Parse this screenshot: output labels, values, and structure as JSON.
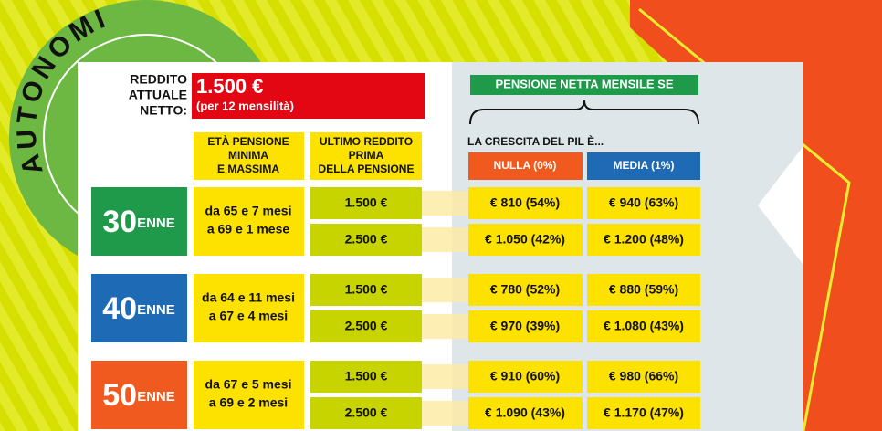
{
  "title": "AUTONOMI",
  "income": {
    "label": [
      "REDDITO",
      "ATTUALE",
      "NETTO:"
    ],
    "amount": "1.500 €",
    "note": "(per 12 mensilità)"
  },
  "columns": {
    "age_range": [
      "ETÀ PENSIONE",
      "MINIMA",
      "E MASSIMA"
    ],
    "last_income": [
      "ULTIMO REDDITO",
      "PRIMA",
      "DELLA PENSIONE"
    ],
    "pension": "PENSIONE NETTA MENSILE SE",
    "gdp": "LA CRESCITA DEL PIL È...",
    "zero": "NULLA (0%)",
    "medium": "MEDIA (1%)"
  },
  "groups": [
    {
      "age": "30",
      "suffix": "ENNE",
      "range": [
        "da 65 e 7 mesi",
        "a 69 e 1 mese"
      ],
      "rows": [
        [
          "1.500 €",
          "€ 810 (54%)",
          "€ 940 (63%)"
        ],
        [
          "2.500 €",
          "€ 1.050 (42%)",
          "€ 1.200 (48%)"
        ]
      ]
    },
    {
      "age": "40",
      "suffix": "ENNE",
      "range": [
        "da 64 e 11 mesi",
        "a 67 e 4 mesi"
      ],
      "rows": [
        [
          "1.500 €",
          "€ 780 (52%)",
          "€ 880 (59%)"
        ],
        [
          "2.500 €",
          "€ 970 (39%)",
          "€ 1.080 (43%)"
        ]
      ]
    },
    {
      "age": "50",
      "suffix": "ENNE",
      "range": [
        "da 67 e 5 mesi",
        "a 69 e 2 mesi"
      ],
      "rows": [
        [
          "1.500 €",
          "€ 910 (60%)",
          "€ 980 (66%)"
        ],
        [
          "2.500 €",
          "€ 1.090 (43%)",
          "€ 1.170 (47%)"
        ]
      ]
    }
  ]
}
